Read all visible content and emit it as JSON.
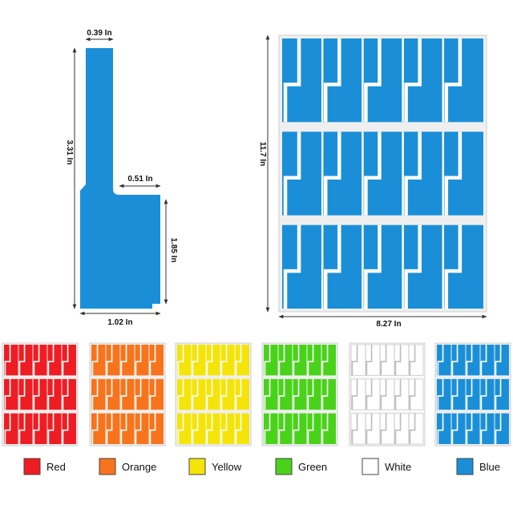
{
  "label_colors": {
    "primary": "#1a8fd8",
    "sheet_gap": "#e6e6e6",
    "line": "#555555"
  },
  "single_label": {
    "top_width": "0.39 In",
    "total_height": "3.31 In",
    "notch_width": "0.51 In",
    "body_height": "1.85 In",
    "body_width": "1.02 In"
  },
  "sheet": {
    "height": "11.7 In",
    "width": "8.27 In"
  },
  "variants": [
    {
      "name": "Red",
      "color": "#ee1d23"
    },
    {
      "name": "Orange",
      "color": "#f7741c"
    },
    {
      "name": "Yellow",
      "color": "#f4e40a"
    },
    {
      "name": "Green",
      "color": "#49d21a"
    },
    {
      "name": "White",
      "color": "#ffffff"
    },
    {
      "name": "Blue",
      "color": "#1a8fd8"
    }
  ]
}
